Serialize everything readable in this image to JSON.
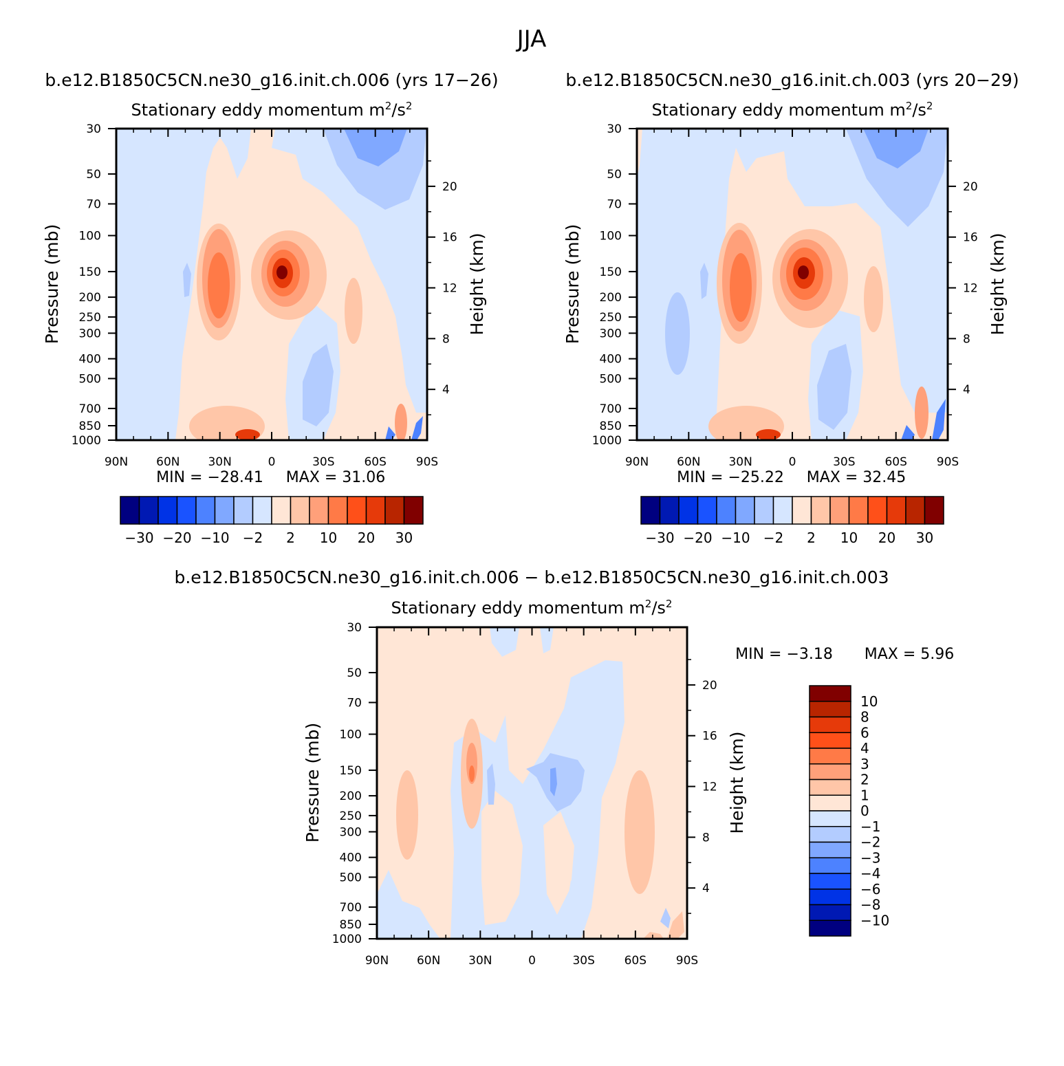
{
  "figure": {
    "title": "JJA",
    "diff_title": "b.e12.B1850C5CN.ne30_g16.init.ch.006 − b.e12.B1850C5CN.ne30_g16.init.ch.003"
  },
  "colors": {
    "abs_palette": [
      "#000080",
      "#0019b3",
      "#0033e6",
      "#1a53ff",
      "#4d82ff",
      "#80a8ff",
      "#b3ccff",
      "#d6e6ff",
      "#ffe6d6",
      "#ffc6a8",
      "#ffa07a",
      "#ff7a47",
      "#ff5019",
      "#e63a0a",
      "#b82500",
      "#800000"
    ],
    "diff_palette": [
      "#000080",
      "#0019b3",
      "#0033e6",
      "#1a53ff",
      "#4d82ff",
      "#80a8ff",
      "#b3ccff",
      "#d6e6ff",
      "#ffe6d6",
      "#ffc6a8",
      "#ffa07a",
      "#ff7a47",
      "#ff5019",
      "#e63a0a",
      "#b82500",
      "#800000"
    ]
  },
  "chart_data": [
    {
      "type": "contour",
      "case_title": "b.e12.B1850C5CN.ne30_g16.init.ch.006 (yrs 17−26)",
      "title": "Stationary eddy momentum",
      "units": "m²/s²",
      "units_base": "m",
      "units_base2": "/s",
      "units_sup": "2",
      "xlabel": "",
      "ylabel": "Pressure (mb)",
      "ylabel_right": "Height (km)",
      "x_ticks": [
        "90N",
        "60N",
        "30N",
        "0",
        "30S",
        "60S",
        "90S"
      ],
      "y_ticks": [
        "30",
        "50",
        "70",
        "100",
        "150",
        "200",
        "250",
        "300",
        "400",
        "500",
        "700",
        "850",
        "1000"
      ],
      "y_ticks_right": [
        "20",
        "16",
        "12",
        "8",
        "4"
      ],
      "ylim": [
        1000,
        30
      ],
      "min_text": "MIN = −28.41",
      "max_text": "MAX = 31.06",
      "min": -28.41,
      "max": 31.06,
      "colorbar_labels": [
        "−30",
        "−20",
        "−10",
        "−2",
        "2",
        "10",
        "20",
        "30"
      ],
      "levels": [
        -30,
        -25,
        -20,
        -15,
        -10,
        -5,
        -2,
        0,
        2,
        5,
        10,
        15,
        20,
        25,
        30
      ]
    },
    {
      "type": "contour",
      "case_title": "b.e12.B1850C5CN.ne30_g16.init.ch.003 (yrs 20−29)",
      "title": "Stationary eddy momentum",
      "units": "m²/s²",
      "units_base": "m",
      "units_base2": "/s",
      "units_sup": "2",
      "xlabel": "",
      "ylabel": "Pressure (mb)",
      "ylabel_right": "Height (km)",
      "x_ticks": [
        "90N",
        "60N",
        "30N",
        "0",
        "30S",
        "60S",
        "90S"
      ],
      "y_ticks": [
        "30",
        "50",
        "70",
        "100",
        "150",
        "200",
        "250",
        "300",
        "400",
        "500",
        "700",
        "850",
        "1000"
      ],
      "y_ticks_right": [
        "20",
        "16",
        "12",
        "8",
        "4"
      ],
      "ylim": [
        1000,
        30
      ],
      "min_text": "MIN = −25.22",
      "max_text": "MAX = 32.45",
      "min": -25.22,
      "max": 32.45,
      "colorbar_labels": [
        "−30",
        "−20",
        "−10",
        "−2",
        "2",
        "10",
        "20",
        "30"
      ],
      "levels": [
        -30,
        -25,
        -20,
        -15,
        -10,
        -5,
        -2,
        0,
        2,
        5,
        10,
        15,
        20,
        25,
        30
      ]
    },
    {
      "type": "contour",
      "case_title": "",
      "title": "Stationary eddy momentum",
      "units": "m²/s²",
      "units_base": "m",
      "units_base2": "/s",
      "units_sup": "2",
      "xlabel": "",
      "ylabel": "Pressure (mb)",
      "ylabel_right": "Height (km)",
      "x_ticks": [
        "90N",
        "60N",
        "30N",
        "0",
        "30S",
        "60S",
        "90S"
      ],
      "y_ticks": [
        "30",
        "50",
        "70",
        "100",
        "150",
        "200",
        "250",
        "300",
        "400",
        "500",
        "700",
        "850",
        "1000"
      ],
      "y_ticks_right": [
        "20",
        "16",
        "12",
        "8",
        "4"
      ],
      "ylim": [
        1000,
        30
      ],
      "min_text": "MIN = −3.18",
      "max_text": "MAX = 5.96",
      "min": -3.18,
      "max": 5.96,
      "colorbar_labels": [
        "10",
        "8",
        "6",
        "4",
        "3",
        "2",
        "1",
        "0",
        "−1",
        "−2",
        "−3",
        "−4",
        "−6",
        "−8",
        "−10"
      ],
      "levels": [
        10,
        8,
        6,
        4,
        3,
        2,
        1,
        0,
        -1,
        -2,
        -3,
        -4,
        -6,
        -8,
        -10
      ]
    }
  ]
}
